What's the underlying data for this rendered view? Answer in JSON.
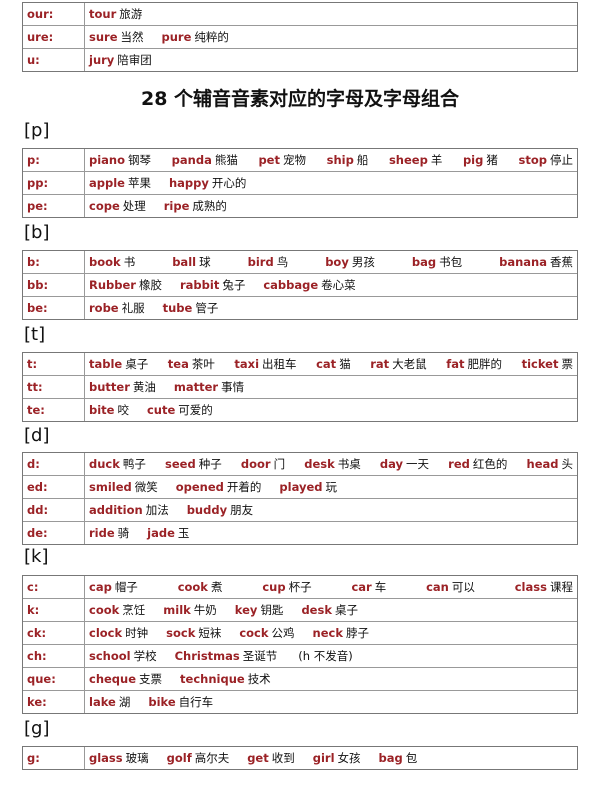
{
  "top_table": {
    "rows": [
      {
        "spelling": "our:",
        "words": [
          {
            "en": "tour",
            "zh": "旅游"
          }
        ]
      },
      {
        "spelling": "ure:",
        "words": [
          {
            "en": "sure",
            "zh": "当然"
          },
          {
            "en": "pure",
            "zh": "纯粹的"
          }
        ]
      },
      {
        "spelling": "u:",
        "words": [
          {
            "en": "jury",
            "zh": "陪审团"
          }
        ]
      }
    ]
  },
  "title": "28 个辅音音素对应的字母及字母组合",
  "sections": [
    {
      "heading": "[p]",
      "rows": [
        {
          "spelling": "p:",
          "words": [
            {
              "en": "piano",
              "zh": "钢琴"
            },
            {
              "en": "panda",
              "zh": "熊猫"
            },
            {
              "en": "pet",
              "zh": "宠物"
            },
            {
              "en": "ship",
              "zh": "船"
            },
            {
              "en": "sheep",
              "zh": "羊"
            },
            {
              "en": "pig",
              "zh": "猪"
            },
            {
              "en": "stop",
              "zh": "停止"
            }
          ]
        },
        {
          "spelling": "pp:",
          "words": [
            {
              "en": "apple",
              "zh": "苹果"
            },
            {
              "en": "happy",
              "zh": "开心的"
            }
          ]
        },
        {
          "spelling": "pe:",
          "words": [
            {
              "en": "cope",
              "zh": "处理"
            },
            {
              "en": "ripe",
              "zh": "成熟的"
            }
          ]
        }
      ]
    },
    {
      "heading": "[b]",
      "rows": [
        {
          "spelling": "b:",
          "words": [
            {
              "en": "book",
              "zh": "书"
            },
            {
              "en": "ball",
              "zh": "球"
            },
            {
              "en": "bird",
              "zh": "鸟"
            },
            {
              "en": "boy",
              "zh": "男孩"
            },
            {
              "en": "bag",
              "zh": "书包"
            },
            {
              "en": "banana",
              "zh": "香蕉"
            }
          ]
        },
        {
          "spelling": "bb:",
          "words": [
            {
              "en": "Rubber",
              "zh": "橡胶"
            },
            {
              "en": "rabbit",
              "zh": "兔子"
            },
            {
              "en": "cabbage",
              "zh": "卷心菜"
            }
          ]
        },
        {
          "spelling": "be:",
          "words": [
            {
              "en": "robe",
              "zh": "礼服"
            },
            {
              "en": "tube",
              "zh": "管子"
            }
          ]
        }
      ]
    },
    {
      "heading": "[t]",
      "rows": [
        {
          "spelling": "t:",
          "words": [
            {
              "en": "table",
              "zh": "桌子"
            },
            {
              "en": "tea",
              "zh": "茶叶"
            },
            {
              "en": "taxi",
              "zh": "出租车"
            },
            {
              "en": "cat",
              "zh": "猫"
            },
            {
              "en": "rat",
              "zh": "大老鼠"
            },
            {
              "en": "fat",
              "zh": "肥胖的"
            },
            {
              "en": "ticket",
              "zh": "票"
            }
          ]
        },
        {
          "spelling": "tt:",
          "words": [
            {
              "en": "butter",
              "zh": "黄油"
            },
            {
              "en": "matter",
              "zh": "事情"
            }
          ]
        },
        {
          "spelling": "te:",
          "words": [
            {
              "en": "bite",
              "zh": "咬"
            },
            {
              "en": "cute",
              "zh": "可爱的"
            }
          ]
        }
      ]
    },
    {
      "heading": "[d]",
      "rows": [
        {
          "spelling": "d:",
          "words": [
            {
              "en": "duck",
              "zh": "鸭子"
            },
            {
              "en": "seed",
              "zh": "种子"
            },
            {
              "en": "door",
              "zh": "门"
            },
            {
              "en": "desk",
              "zh": "书桌"
            },
            {
              "en": "day",
              "zh": "一天"
            },
            {
              "en": "red",
              "zh": "红色的"
            },
            {
              "en": "head",
              "zh": "头"
            }
          ]
        },
        {
          "spelling": "ed:",
          "words": [
            {
              "en": "smiled",
              "zh": "微笑"
            },
            {
              "en": "opened",
              "zh": "开着的"
            },
            {
              "en": "played",
              "zh": "玩"
            }
          ]
        },
        {
          "spelling": "dd:",
          "words": [
            {
              "en": "addition",
              "zh": "加法"
            },
            {
              "en": "buddy",
              "zh": "朋友"
            }
          ]
        },
        {
          "spelling": "de:",
          "words": [
            {
              "en": "ride",
              "zh": "骑"
            },
            {
              "en": "jade",
              "zh": "玉"
            }
          ]
        }
      ]
    },
    {
      "heading": "[k]",
      "rows": [
        {
          "spelling": "c:",
          "words": [
            {
              "en": "cap",
              "zh": "帽子"
            },
            {
              "en": "cook",
              "zh": "煮"
            },
            {
              "en": "cup",
              "zh": "杯子"
            },
            {
              "en": "car",
              "zh": "车"
            },
            {
              "en": "can",
              "zh": "可以"
            },
            {
              "en": "class",
              "zh": "课程"
            }
          ]
        },
        {
          "spelling": "k:",
          "words": [
            {
              "en": "cook",
              "zh": "烹饪"
            },
            {
              "en": "milk",
              "zh": "牛奶"
            },
            {
              "en": "key",
              "zh": "钥匙"
            },
            {
              "en": "desk",
              "zh": "桌子"
            }
          ]
        },
        {
          "spelling": "ck:",
          "words": [
            {
              "en": "clock",
              "zh": "时钟"
            },
            {
              "en": "sock",
              "zh": "短袜"
            },
            {
              "en": "cock",
              "zh": "公鸡"
            },
            {
              "en": "neck",
              "zh": "脖子"
            }
          ]
        },
        {
          "spelling": "ch:",
          "words": [
            {
              "en": "school",
              "zh": "学校"
            },
            {
              "en": "Christmas",
              "zh": "圣诞节"
            }
          ],
          "note": "(h 不发音)"
        },
        {
          "spelling": "que:",
          "words": [
            {
              "en": "cheque",
              "zh": "支票"
            },
            {
              "en": "technique",
              "zh": "技术"
            }
          ]
        },
        {
          "spelling": "ke:",
          "words": [
            {
              "en": "lake",
              "zh": "湖"
            },
            {
              "en": "bike",
              "zh": "自行车"
            }
          ]
        }
      ]
    },
    {
      "heading": "[g]",
      "rows": [
        {
          "spelling": "g:",
          "words": [
            {
              "en": "glass",
              "zh": "玻璃"
            },
            {
              "en": "golf",
              "zh": "高尔夫"
            },
            {
              "en": "get",
              "zh": "收到"
            },
            {
              "en": "girl",
              "zh": "女孩"
            },
            {
              "en": "bag",
              "zh": "包"
            }
          ]
        }
      ]
    }
  ]
}
